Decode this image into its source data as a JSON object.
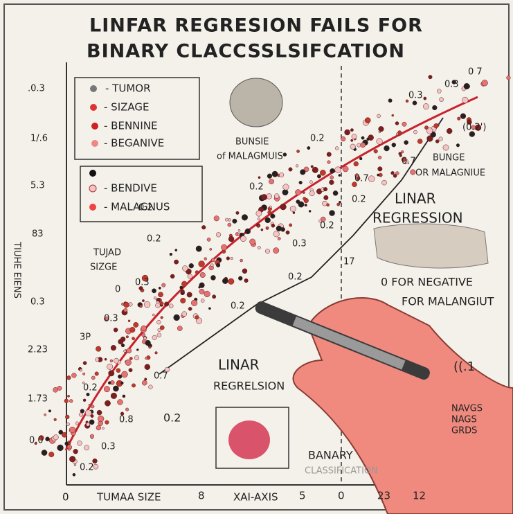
{
  "title": [
    "LINFAR REGRESION FAILS FOR",
    "BINARY CLACCSSLSIFCATION"
  ],
  "y_axis": {
    "label": "TIUHE EIENS",
    "ticks": [
      ".0.3",
      "1/.6",
      "5.3",
      "83",
      "0.3",
      "2.23",
      "1.73",
      "0.0"
    ]
  },
  "legend_top": [
    "- TUMOR",
    "- SIZAGE",
    "- BENNINE",
    "- BEGANIVE"
  ],
  "legend_bottom": [
    "- BENDIVE",
    "- MALAGNUS"
  ],
  "x_axis": [
    "0",
    "TUMAA SIZE",
    "8",
    "XAI-AXIS",
    "5",
    "0",
    "23",
    "12"
  ],
  "annotations": {
    "bunsie": [
      "BUNSIE",
      "of MALAGMUIS"
    ],
    "bunge": [
      "BUNGE",
      "OR MALAGNIUE"
    ],
    "linar_right": [
      "LINAR",
      "REGRESSION"
    ],
    "negative": [
      "0 FOR NEGATIVE",
      "FOR MALANGIUT"
    ],
    "linar_bottom": [
      "LINAR",
      "REGRELSION"
    ],
    "binary": [
      "BANARY",
      "CLASSIFICATION"
    ],
    "tumor_size": [
      "TUJAD",
      "SIZGE"
    ],
    "navgs": [
      "NAVGS",
      "NAGS",
      "GRDS"
    ]
  },
  "point_labels": [
    "0.2",
    "0.3",
    "0.3",
    "0 7",
    "(0.2')",
    "0.2",
    "0.2",
    "0.3",
    "0.3",
    "0.2",
    "0.2",
    "0.7",
    "0.8",
    "0.2",
    "0.3",
    "3P",
    "0.2",
    "0.2",
    "0.7",
    "0.2",
    "0.7",
    "17",
    "((.1",
    "0",
    "0.2",
    "0.2",
    "0.3"
  ]
}
